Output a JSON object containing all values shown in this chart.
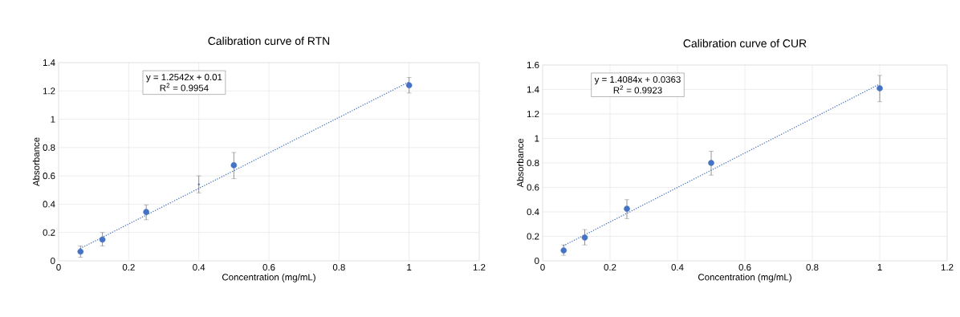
{
  "chart_data": [
    {
      "type": "scatter",
      "title": "Calibration curve of RTN",
      "xlabel": "Concentration (mg/mL)",
      "ylabel": "Absorbance",
      "annotations": [
        "y = 1.2542x + 0.01",
        "R$^{2}$ = 0.9954"
      ],
      "xlim": [
        0,
        1.2
      ],
      "xticks": [
        0,
        0.2,
        0.4,
        0.6,
        0.8,
        1,
        1.2
      ],
      "ylim": [
        0,
        1.4
      ],
      "yticks": [
        0,
        0.2,
        0.4,
        0.6,
        0.8,
        1,
        1.2,
        1.4
      ],
      "grid": true,
      "series": [
        {
          "type": "line",
          "x": [
            0.0625,
            1
          ],
          "values": [
            0.088,
            1.264
          ],
          "color": "#4472c4",
          "line_style": "dotted",
          "marker": "none"
        },
        {
          "x": [
            0.0625,
            0.125,
            0.25,
            0.5,
            1
          ],
          "values": [
            0.065,
            0.15,
            0.345,
            0.675,
            1.24
          ],
          "color": "#4472c4",
          "marker": "circle",
          "errors": [
            [
              0.025,
              0.105
            ],
            [
              0.105,
              0.2
            ],
            [
              0.29,
              0.395
            ],
            [
              0.58,
              0.765
            ],
            [
              1.185,
              1.295
            ]
          ]
        },
        {
          "x": [
            0.4
          ],
          "values": [
            0.54
          ],
          "color": "#4472c4",
          "marker": "none",
          "errors": [
            [
              0.48,
              0.6
            ]
          ]
        }
      ]
    },
    {
      "type": "scatter",
      "title": "Calibration curve of CUR",
      "xlabel": "Concentration (mg/mL)",
      "ylabel": "Absorbance",
      "annotations": [
        "y = 1.4084x + 0.0363",
        "R$^{2}$ = 0.9923"
      ],
      "xlim": [
        0,
        1.2
      ],
      "xticks": [
        0,
        0.2,
        0.4,
        0.6,
        0.8,
        1,
        1.2
      ],
      "ylim": [
        0,
        1.6
      ],
      "yticks": [
        0,
        0.2,
        0.4,
        0.6,
        0.8,
        1,
        1.2,
        1.4,
        1.6
      ],
      "grid": true,
      "series": [
        {
          "type": "line",
          "x": [
            0.0625,
            1
          ],
          "values": [
            0.124,
            1.445
          ],
          "color": "#4472c4",
          "line_style": "dotted",
          "marker": "none"
        },
        {
          "x": [
            0.0625,
            0.125,
            0.25,
            0.5,
            1
          ],
          "values": [
            0.085,
            0.19,
            0.425,
            0.8,
            1.41
          ],
          "color": "#4472c4",
          "marker": "circle",
          "errors": [
            [
              0.045,
              0.13
            ],
            [
              0.13,
              0.255
            ],
            [
              0.345,
              0.5
            ],
            [
              0.7,
              0.895
            ],
            [
              1.3,
              1.515
            ]
          ]
        }
      ]
    }
  ]
}
